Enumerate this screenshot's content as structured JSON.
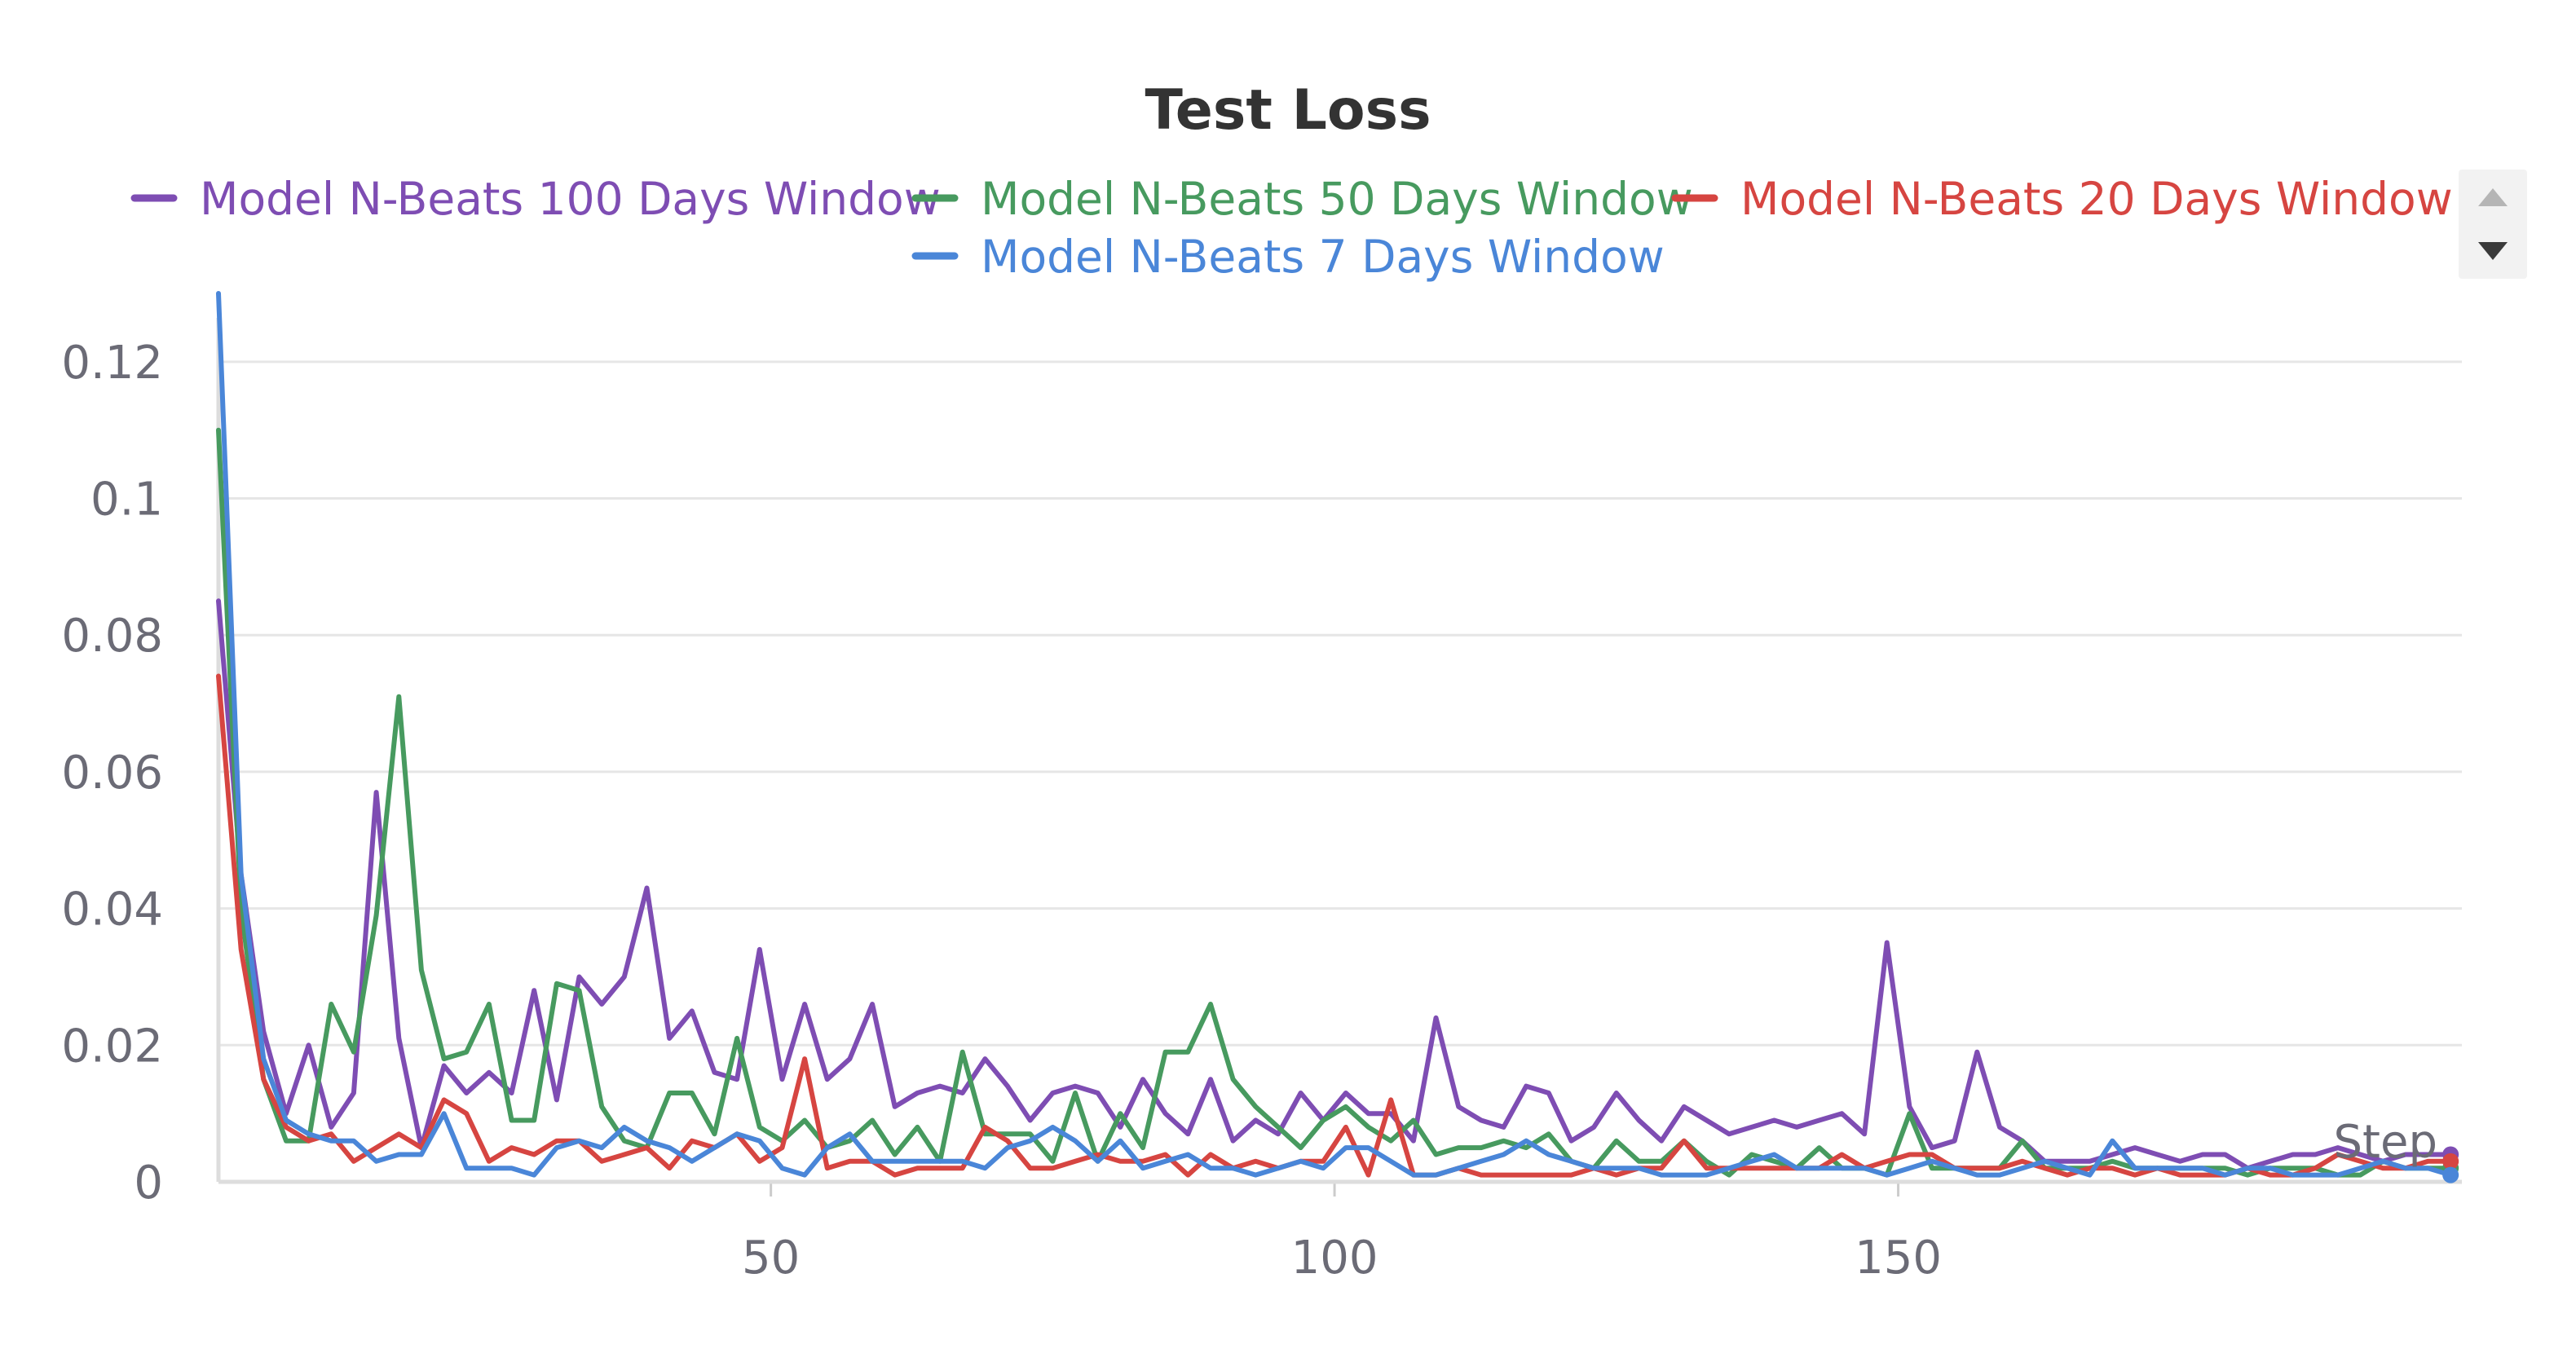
{
  "chart_data": {
    "type": "line",
    "title": "Test Loss",
    "xlabel": "Step",
    "ylabel": "",
    "xlim": [
      1,
      200
    ],
    "ylim": [
      0,
      0.13
    ],
    "x_ticks": [
      50,
      100,
      150
    ],
    "x_tick_labels": [
      "50",
      "100",
      "150"
    ],
    "y_ticks": [
      0,
      0.02,
      0.04,
      0.06,
      0.08,
      0.1,
      0.12
    ],
    "y_tick_labels": [
      "0",
      "0.02",
      "0.04",
      "0.06",
      "0.08",
      "0.1",
      "0.12"
    ],
    "grid": true,
    "legend_position": "top",
    "series": [
      {
        "name": "Model N-Beats 100 Days Window",
        "color": "#7e4db3",
        "x": [
          1,
          3,
          5,
          7,
          9,
          11,
          13,
          15,
          17,
          19,
          21,
          23,
          25,
          27,
          29,
          31,
          33,
          35,
          37,
          39,
          41,
          43,
          45,
          47,
          49,
          51,
          53,
          55,
          57,
          59,
          61,
          63,
          65,
          67,
          69,
          71,
          73,
          75,
          77,
          79,
          81,
          83,
          85,
          87,
          89,
          91,
          93,
          95,
          97,
          99,
          101,
          103,
          105,
          107,
          109,
          111,
          113,
          115,
          117,
          119,
          121,
          123,
          125,
          127,
          129,
          131,
          133,
          135,
          137,
          139,
          141,
          143,
          145,
          147,
          149,
          151,
          153,
          155,
          157,
          159,
          161,
          163,
          165,
          167,
          169,
          171,
          173,
          175,
          177,
          179,
          181,
          183,
          185,
          187,
          189,
          191,
          193,
          195,
          197,
          199
        ],
        "y": [
          0.085,
          0.045,
          0.022,
          0.01,
          0.02,
          0.008,
          0.013,
          0.057,
          0.021,
          0.005,
          0.017,
          0.013,
          0.016,
          0.013,
          0.028,
          0.012,
          0.03,
          0.026,
          0.03,
          0.043,
          0.021,
          0.025,
          0.016,
          0.015,
          0.034,
          0.015,
          0.026,
          0.015,
          0.018,
          0.026,
          0.011,
          0.013,
          0.014,
          0.013,
          0.018,
          0.014,
          0.009,
          0.013,
          0.014,
          0.013,
          0.008,
          0.015,
          0.01,
          0.007,
          0.015,
          0.006,
          0.009,
          0.007,
          0.013,
          0.009,
          0.013,
          0.01,
          0.01,
          0.006,
          0.024,
          0.011,
          0.009,
          0.008,
          0.014,
          0.013,
          0.006,
          0.008,
          0.013,
          0.009,
          0.006,
          0.011,
          0.009,
          0.007,
          0.008,
          0.009,
          0.008,
          0.009,
          0.01,
          0.007,
          0.035,
          0.011,
          0.005,
          0.006,
          0.019,
          0.008,
          0.006,
          0.003,
          0.003,
          0.003,
          0.004,
          0.005,
          0.004,
          0.003,
          0.004,
          0.004,
          0.002,
          0.003,
          0.004,
          0.004,
          0.005,
          0.004,
          0.003,
          0.004,
          0.004,
          0.004
        ]
      },
      {
        "name": "Model N-Beats 50 Days Window",
        "color": "#479a5f",
        "x": [
          1,
          3,
          5,
          7,
          9,
          11,
          13,
          15,
          17,
          19,
          21,
          23,
          25,
          27,
          29,
          31,
          33,
          35,
          37,
          39,
          41,
          43,
          45,
          47,
          49,
          51,
          53,
          55,
          57,
          59,
          61,
          63,
          65,
          67,
          69,
          71,
          73,
          75,
          77,
          79,
          81,
          83,
          85,
          87,
          89,
          91,
          93,
          95,
          97,
          99,
          101,
          103,
          105,
          107,
          109,
          111,
          113,
          115,
          117,
          119,
          121,
          123,
          125,
          127,
          129,
          131,
          133,
          135,
          137,
          139,
          141,
          143,
          145,
          147,
          149,
          151,
          153,
          155,
          157,
          159,
          161,
          163,
          165,
          167,
          169,
          171,
          173,
          175,
          177,
          179,
          181,
          183,
          185,
          187,
          189,
          191,
          193,
          195,
          197,
          199
        ],
        "y": [
          0.11,
          0.04,
          0.015,
          0.006,
          0.006,
          0.026,
          0.019,
          0.039,
          0.071,
          0.031,
          0.018,
          0.019,
          0.026,
          0.009,
          0.009,
          0.029,
          0.028,
          0.011,
          0.006,
          0.005,
          0.013,
          0.013,
          0.007,
          0.021,
          0.008,
          0.006,
          0.009,
          0.005,
          0.006,
          0.009,
          0.004,
          0.008,
          0.003,
          0.019,
          0.007,
          0.007,
          0.007,
          0.003,
          0.013,
          0.003,
          0.01,
          0.005,
          0.019,
          0.019,
          0.026,
          0.015,
          0.011,
          0.008,
          0.005,
          0.009,
          0.011,
          0.008,
          0.006,
          0.009,
          0.004,
          0.005,
          0.005,
          0.006,
          0.005,
          0.007,
          0.003,
          0.002,
          0.006,
          0.003,
          0.003,
          0.006,
          0.003,
          0.001,
          0.004,
          0.003,
          0.002,
          0.005,
          0.002,
          0.002,
          0.001,
          0.01,
          0.002,
          0.002,
          0.002,
          0.002,
          0.006,
          0.002,
          0.002,
          0.002,
          0.003,
          0.002,
          0.002,
          0.002,
          0.002,
          0.002,
          0.001,
          0.002,
          0.002,
          0.002,
          0.001,
          0.001,
          0.003,
          0.002,
          0.002,
          0.002
        ]
      },
      {
        "name": "Model N-Beats 20 Days Window",
        "color": "#d64541",
        "x": [
          1,
          3,
          5,
          7,
          9,
          11,
          13,
          15,
          17,
          19,
          21,
          23,
          25,
          27,
          29,
          31,
          33,
          35,
          37,
          39,
          41,
          43,
          45,
          47,
          49,
          51,
          53,
          55,
          57,
          59,
          61,
          63,
          65,
          67,
          69,
          71,
          73,
          75,
          77,
          79,
          81,
          83,
          85,
          87,
          89,
          91,
          93,
          95,
          97,
          99,
          101,
          103,
          105,
          107,
          109,
          111,
          113,
          115,
          117,
          119,
          121,
          123,
          125,
          127,
          129,
          131,
          133,
          135,
          137,
          139,
          141,
          143,
          145,
          147,
          149,
          151,
          153,
          155,
          157,
          159,
          161,
          163,
          165,
          167,
          169,
          171,
          173,
          175,
          177,
          179,
          181,
          183,
          185,
          187,
          189,
          191,
          193,
          195,
          197,
          199
        ],
        "y": [
          0.074,
          0.034,
          0.015,
          0.008,
          0.006,
          0.007,
          0.003,
          0.005,
          0.007,
          0.005,
          0.012,
          0.01,
          0.003,
          0.005,
          0.004,
          0.006,
          0.006,
          0.003,
          0.004,
          0.005,
          0.002,
          0.006,
          0.005,
          0.007,
          0.003,
          0.005,
          0.018,
          0.002,
          0.003,
          0.003,
          0.001,
          0.002,
          0.002,
          0.002,
          0.008,
          0.006,
          0.002,
          0.002,
          0.003,
          0.004,
          0.003,
          0.003,
          0.004,
          0.001,
          0.004,
          0.002,
          0.003,
          0.002,
          0.003,
          0.003,
          0.008,
          0.001,
          0.012,
          0.001,
          0.001,
          0.002,
          0.001,
          0.001,
          0.001,
          0.001,
          0.001,
          0.002,
          0.001,
          0.002,
          0.002,
          0.006,
          0.002,
          0.002,
          0.002,
          0.002,
          0.002,
          0.002,
          0.004,
          0.002,
          0.003,
          0.004,
          0.004,
          0.002,
          0.002,
          0.002,
          0.003,
          0.002,
          0.001,
          0.002,
          0.002,
          0.001,
          0.002,
          0.001,
          0.001,
          0.001,
          0.002,
          0.001,
          0.001,
          0.002,
          0.004,
          0.003,
          0.002,
          0.002,
          0.003,
          0.003
        ]
      },
      {
        "name": "Model N-Beats 7 Days Window",
        "color": "#4a86d8",
        "x": [
          1,
          3,
          5,
          7,
          9,
          11,
          13,
          15,
          17,
          19,
          21,
          23,
          25,
          27,
          29,
          31,
          33,
          35,
          37,
          39,
          41,
          43,
          45,
          47,
          49,
          51,
          53,
          55,
          57,
          59,
          61,
          63,
          65,
          67,
          69,
          71,
          73,
          75,
          77,
          79,
          81,
          83,
          85,
          87,
          89,
          91,
          93,
          95,
          97,
          99,
          101,
          103,
          105,
          107,
          109,
          111,
          113,
          115,
          117,
          119,
          121,
          123,
          125,
          127,
          129,
          131,
          133,
          135,
          137,
          139,
          141,
          143,
          145,
          147,
          149,
          151,
          153,
          155,
          157,
          159,
          161,
          163,
          165,
          167,
          169,
          171,
          173,
          175,
          177,
          179,
          181,
          183,
          185,
          187,
          189,
          191,
          193,
          195,
          197,
          199
        ],
        "y": [
          0.13,
          0.045,
          0.018,
          0.009,
          0.007,
          0.006,
          0.006,
          0.003,
          0.004,
          0.004,
          0.01,
          0.002,
          0.002,
          0.002,
          0.001,
          0.005,
          0.006,
          0.005,
          0.008,
          0.006,
          0.005,
          0.003,
          0.005,
          0.007,
          0.006,
          0.002,
          0.001,
          0.005,
          0.007,
          0.003,
          0.003,
          0.003,
          0.003,
          0.003,
          0.002,
          0.005,
          0.006,
          0.008,
          0.006,
          0.003,
          0.006,
          0.002,
          0.003,
          0.004,
          0.002,
          0.002,
          0.001,
          0.002,
          0.003,
          0.002,
          0.005,
          0.005,
          0.003,
          0.001,
          0.001,
          0.002,
          0.003,
          0.004,
          0.006,
          0.004,
          0.003,
          0.002,
          0.002,
          0.002,
          0.001,
          0.001,
          0.001,
          0.002,
          0.003,
          0.004,
          0.002,
          0.002,
          0.002,
          0.002,
          0.001,
          0.002,
          0.003,
          0.002,
          0.001,
          0.001,
          0.002,
          0.003,
          0.002,
          0.001,
          0.006,
          0.002,
          0.002,
          0.002,
          0.002,
          0.001,
          0.002,
          0.002,
          0.001,
          0.001,
          0.001,
          0.002,
          0.003,
          0.002,
          0.002,
          0.001
        ]
      }
    ]
  }
}
